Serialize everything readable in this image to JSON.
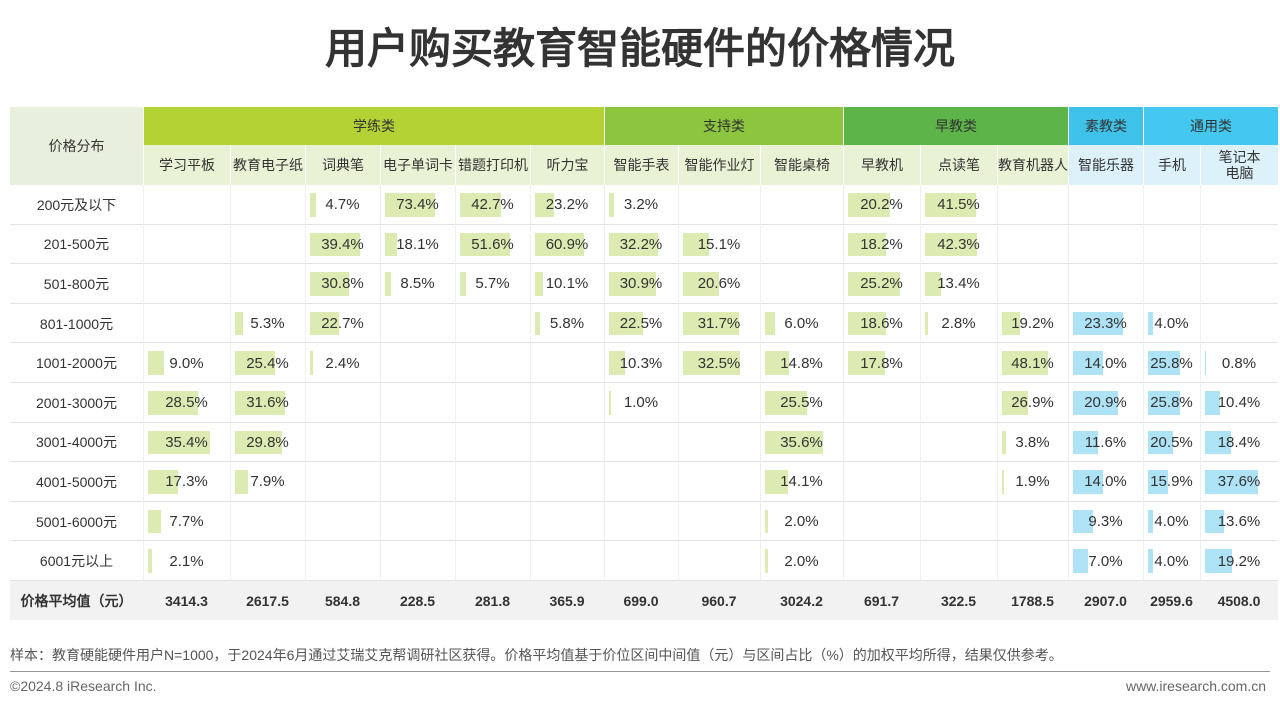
{
  "title": "用户购买教育智能硬件的价格情况",
  "table": {
    "corner": "价格分布",
    "groups": [
      {
        "name": "学练类",
        "columns": [
          "学习平板",
          "教育电子纸",
          "词典笔",
          "电子单词卡",
          "错题打印机",
          "听力宝"
        ]
      },
      {
        "name": "支持类",
        "columns": [
          "智能手表",
          "智能作业灯",
          "智能桌椅"
        ]
      },
      {
        "name": "早教类",
        "columns": [
          "早教机",
          "点读笔",
          "教育机器人"
        ]
      },
      {
        "name": "素教类",
        "columns": [
          "智能乐器"
        ]
      },
      {
        "name": "通用类",
        "columns": [
          "手机",
          "笔记本电脑"
        ]
      }
    ],
    "rows": [
      {
        "label": "200元及以下",
        "values": [
          null,
          null,
          4.7,
          73.4,
          42.7,
          23.2,
          3.2,
          null,
          null,
          20.2,
          41.5,
          null,
          null,
          null,
          null
        ],
        "value_labels": [
          null,
          null,
          "4.7%",
          "73.4%",
          "42.7%",
          "23.2%",
          "3.2%",
          null,
          null,
          "20.2%",
          "41.5%",
          null,
          null,
          null,
          null
        ]
      },
      {
        "label": "201-500元",
        "values": [
          null,
          null,
          39.4,
          18.1,
          51.6,
          60.9,
          32.2,
          15.1,
          null,
          18.2,
          42.3,
          null,
          null,
          null,
          null
        ],
        "value_labels": [
          null,
          null,
          "39.4%",
          "18.1%",
          "51.6%",
          "60.9%",
          "32.2%",
          "15.1%",
          null,
          "18.2%",
          "42.3%",
          null,
          null,
          null,
          null
        ]
      },
      {
        "label": "501-800元",
        "values": [
          null,
          null,
          30.8,
          8.5,
          5.7,
          10.1,
          30.9,
          20.6,
          null,
          25.2,
          13.4,
          null,
          null,
          null,
          null
        ],
        "value_labels": [
          null,
          null,
          "30.8%",
          "8.5%",
          "5.7%",
          "10.1%",
          "30.9%",
          "20.6%",
          null,
          "25.2%",
          "13.4%",
          null,
          null,
          null,
          null
        ]
      },
      {
        "label": "801-1000元",
        "values": [
          null,
          5.3,
          22.7,
          null,
          null,
          5.8,
          22.5,
          31.7,
          6.0,
          18.6,
          2.8,
          19.2,
          23.3,
          4.0,
          null
        ],
        "value_labels": [
          null,
          "5.3%",
          "22.7%",
          null,
          null,
          "5.8%",
          "22.5%",
          "31.7%",
          "6.0%",
          "18.6%",
          "2.8%",
          "19.2%",
          "23.3%",
          "4.0%",
          null
        ]
      },
      {
        "label": "1001-2000元",
        "values": [
          9.0,
          25.4,
          2.4,
          null,
          null,
          null,
          10.3,
          32.5,
          14.8,
          17.8,
          null,
          48.1,
          14.0,
          25.8,
          0.8
        ],
        "value_labels": [
          "9.0%",
          "25.4%",
          "2.4%",
          null,
          null,
          null,
          "10.3%",
          "32.5%",
          "14.8%",
          "17.8%",
          null,
          "48.1%",
          "14.0%",
          "25.8%",
          "0.8%"
        ]
      },
      {
        "label": "2001-3000元",
        "values": [
          28.5,
          31.6,
          null,
          null,
          null,
          null,
          1.0,
          null,
          25.5,
          null,
          null,
          26.9,
          20.9,
          25.8,
          10.4
        ],
        "value_labels": [
          "28.5%",
          "31.6%",
          null,
          null,
          null,
          null,
          "1.0%",
          null,
          "25.5%",
          null,
          null,
          "26.9%",
          "20.9%",
          "25.8%",
          "10.4%"
        ]
      },
      {
        "label": "3001-4000元",
        "values": [
          35.4,
          29.8,
          null,
          null,
          null,
          null,
          null,
          null,
          35.6,
          null,
          null,
          3.8,
          11.6,
          20.5,
          18.4
        ],
        "value_labels": [
          "35.4%",
          "29.8%",
          null,
          null,
          null,
          null,
          null,
          null,
          "35.6%",
          null,
          null,
          "3.8%",
          "11.6%",
          "20.5%",
          "18.4%"
        ]
      },
      {
        "label": "4001-5000元",
        "values": [
          17.3,
          7.9,
          null,
          null,
          null,
          null,
          null,
          null,
          14.1,
          null,
          null,
          1.9,
          14.0,
          15.9,
          37.6
        ],
        "value_labels": [
          "17.3%",
          "7.9%",
          null,
          null,
          null,
          null,
          null,
          null,
          "14.1%",
          null,
          null,
          "1.9%",
          "14.0%",
          "15.9%",
          "37.6%"
        ]
      },
      {
        "label": "5001-6000元",
        "values": [
          7.7,
          null,
          null,
          null,
          null,
          null,
          null,
          null,
          2.0,
          null,
          null,
          null,
          9.3,
          4.0,
          13.6
        ],
        "value_labels": [
          "7.7%",
          null,
          null,
          null,
          null,
          null,
          null,
          null,
          "2.0%",
          null,
          null,
          null,
          "9.3%",
          "4.0%",
          "13.6%"
        ]
      },
      {
        "label": "6001元以上",
        "values": [
          2.1,
          null,
          null,
          null,
          null,
          null,
          null,
          null,
          2.0,
          null,
          null,
          null,
          7.0,
          4.0,
          19.2
        ],
        "value_labels": [
          "2.1%",
          null,
          null,
          null,
          null,
          null,
          null,
          null,
          "2.0%",
          null,
          null,
          null,
          "7.0%",
          "4.0%",
          "19.2%"
        ]
      }
    ],
    "average": {
      "label": "价格平均值（元）",
      "values": [
        "3414.3",
        "2617.5",
        "584.8",
        "228.5",
        "281.8",
        "365.9",
        "699.0",
        "960.7",
        "3024.2",
        "691.7",
        "322.5",
        "1788.5",
        "2907.0",
        "2959.6",
        "4508.0"
      ]
    }
  },
  "footer": {
    "note": "样本：教育硬能硬件用户N=1000，于2024年6月通过艾瑞艾克帮调研社区获得。价格平均值基于价位区间中间值（元）与区间占比（%）的加权平均所得，结果仅供参考。",
    "copyright": "©2024.8 iResearch Inc.",
    "website": "www.iresearch.com.cn"
  }
}
